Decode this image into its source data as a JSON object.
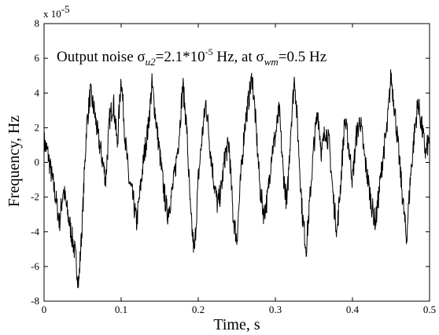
{
  "chart_data": {
    "type": "line",
    "xlabel": "Time, s",
    "ylabel": "Frequency, Hz",
    "xlim": [
      0,
      0.5
    ],
    "ylim": [
      -8e-05,
      8e-05
    ],
    "x_ticks": [
      "0",
      "0.1",
      "0.2",
      "0.3",
      "0.4",
      "0.5"
    ],
    "y_ticks": [
      "-8",
      "-6",
      "-4",
      "-2",
      "0",
      "2",
      "4",
      "6",
      "8"
    ],
    "y_multiplier": "x 10",
    "y_multiplier_exp": "-5",
    "grid": false,
    "annotation": {
      "prefix": "Output noise σ",
      "sub1": "u2",
      "mid1": "=2.1*10",
      "sup1": "-5",
      "mid2": " Hz, at σ",
      "sub2": "wm",
      "suffix": "=0.5 Hz"
    },
    "series": [
      {
        "x": [
          0,
          0.005,
          0.01,
          0.015,
          0.02,
          0.025,
          0.03,
          0.035,
          0.04,
          0.045,
          0.05,
          0.055,
          0.06,
          0.065,
          0.07,
          0.075,
          0.08,
          0.085,
          0.09,
          0.095,
          0.1,
          0.105,
          0.11,
          0.115,
          0.12,
          0.125,
          0.13,
          0.135,
          0.14,
          0.145,
          0.15,
          0.155,
          0.16,
          0.165,
          0.17,
          0.175,
          0.18,
          0.185,
          0.19,
          0.195,
          0.2,
          0.205,
          0.21,
          0.215,
          0.22,
          0.225,
          0.23,
          0.235,
          0.24,
          0.245,
          0.25,
          0.255,
          0.26,
          0.265,
          0.27,
          0.275,
          0.28,
          0.285,
          0.29,
          0.295,
          0.3,
          0.305,
          0.31,
          0.315,
          0.32,
          0.325,
          0.33,
          0.335,
          0.34,
          0.345,
          0.35,
          0.355,
          0.36,
          0.365,
          0.37,
          0.375,
          0.38,
          0.385,
          0.39,
          0.395,
          0.4,
          0.405,
          0.41,
          0.415,
          0.42,
          0.425,
          0.43,
          0.435,
          0.44,
          0.445,
          0.45,
          0.455,
          0.46,
          0.465,
          0.47,
          0.475,
          0.48,
          0.485,
          0.49,
          0.495,
          0.5
        ],
        "y": [
          1.2e-05,
          5e-06,
          -8e-06,
          -2e-05,
          -3.5e-05,
          -1.5e-05,
          -2.8e-05,
          -4e-05,
          -5.2e-05,
          -7e-05,
          -3e-05,
          2e-05,
          4e-05,
          3e-05,
          1.5e-05,
          3e-06,
          -1e-05,
          2.5e-05,
          3.5e-05,
          1e-05,
          5e-05,
          1.5e-05,
          -1e-05,
          -2e-05,
          -3.5e-05,
          -1.5e-05,
          5e-06,
          2e-05,
          4.5e-05,
          2.5e-05,
          5e-06,
          -1.5e-05,
          -3e-05,
          -2e-05,
          -5e-06,
          1.5e-05,
          4.5e-05,
          2e-05,
          -3e-05,
          -5.3e-05,
          -1e-05,
          1.5e-05,
          3.5e-05,
          1e-05,
          -1e-05,
          -2.5e-05,
          -1.5e-05,
          5e-06,
          1e-05,
          -3e-05,
          -4.5e-05,
          -1e-05,
          2e-05,
          3.5e-05,
          5e-05,
          2e-05,
          -1.5e-05,
          -3e-05,
          -2e-05,
          5e-06,
          1.5e-05,
          3e-05,
          -5e-06,
          -2.5e-05,
          2e-05,
          5e-05,
          1e-05,
          -3e-05,
          -5e-05,
          -2e-05,
          1e-05,
          3e-05,
          5e-06,
          2e-05,
          1e-05,
          -2e-05,
          -4e-05,
          -1e-05,
          2.5e-05,
          1e-05,
          -1e-05,
          1.5e-05,
          2.5e-05,
          5e-06,
          -1e-05,
          -2.5e-05,
          -3.5e-05,
          -1.5e-05,
          5e-06,
          2e-05,
          5e-05,
          3e-05,
          5e-06,
          -2e-05,
          -4.5e-05,
          -1e-05,
          1.5e-05,
          3.5e-05,
          2e-05,
          5e-06,
          1.5e-05
        ]
      }
    ]
  }
}
